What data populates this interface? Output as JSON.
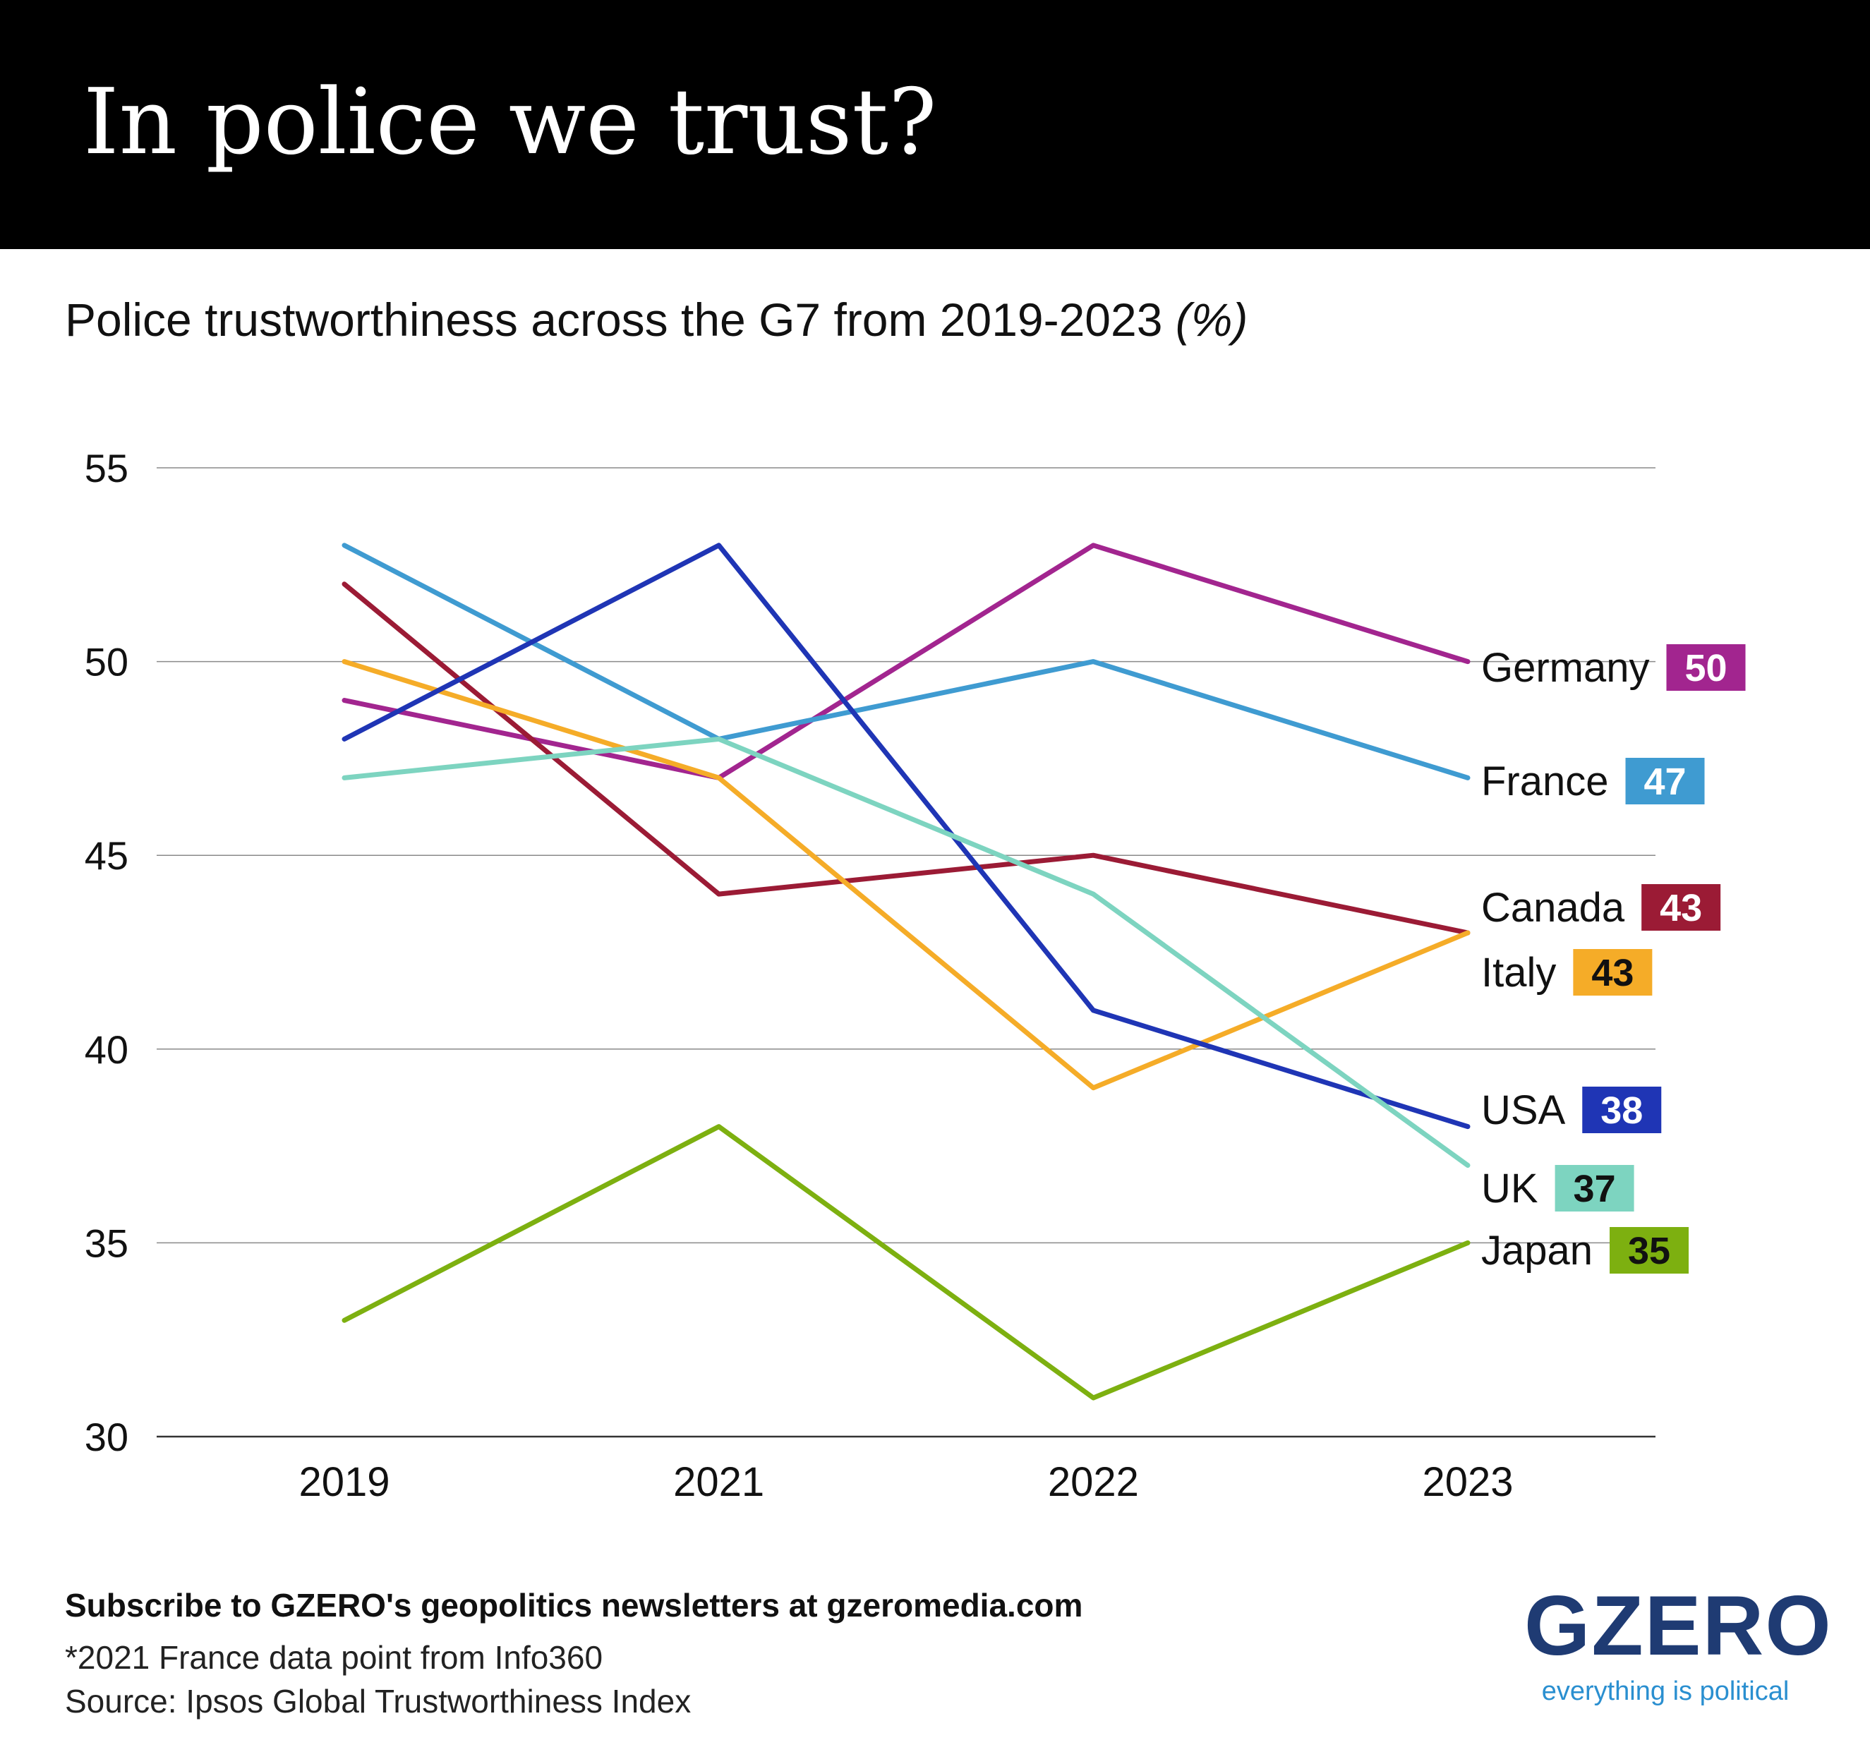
{
  "header": {
    "title": "In police we trust?"
  },
  "chart_data": {
    "type": "line",
    "title": "Police trustworthiness across the G7 from 2019-2023",
    "unit": "(%)",
    "x": [
      "2019",
      "2021",
      "2022",
      "2023"
    ],
    "ylim": [
      30,
      55
    ],
    "yticks": [
      30,
      35,
      40,
      45,
      50,
      55
    ],
    "grid": true,
    "legend": "direct labels at line ends",
    "series": [
      {
        "name": "Germany",
        "color": "#a2258f",
        "values": [
          49,
          47,
          53,
          50
        ],
        "end_label": "50"
      },
      {
        "name": "France",
        "color": "#3f9bd1",
        "values": [
          53,
          48,
          50,
          47
        ],
        "end_label": "47"
      },
      {
        "name": "Canada",
        "color": "#9b1b35",
        "values": [
          52,
          44,
          45,
          43
        ],
        "end_label": "43"
      },
      {
        "name": "Italy",
        "color": "#f5ac28",
        "values": [
          50,
          47,
          39,
          43
        ],
        "end_label": "43"
      },
      {
        "name": "USA",
        "color": "#1f35b5",
        "values": [
          48,
          53,
          41,
          38
        ],
        "end_label": "38"
      },
      {
        "name": "UK",
        "color": "#7dd4c0",
        "values": [
          47,
          48,
          44,
          37
        ],
        "end_label": "37"
      },
      {
        "name": "Japan",
        "color": "#7db010",
        "values": [
          33,
          38,
          31,
          35
        ],
        "end_label": "35"
      }
    ]
  },
  "footer": {
    "cta": "Subscribe to GZERO's geopolitics newsletters at gzeromedia.com",
    "note": "*2021 France data point from Info360",
    "source": "Source: Ipsos Global Trustworthiness Index"
  },
  "logo": {
    "word": "GZERO",
    "tagline": "everything is political"
  }
}
